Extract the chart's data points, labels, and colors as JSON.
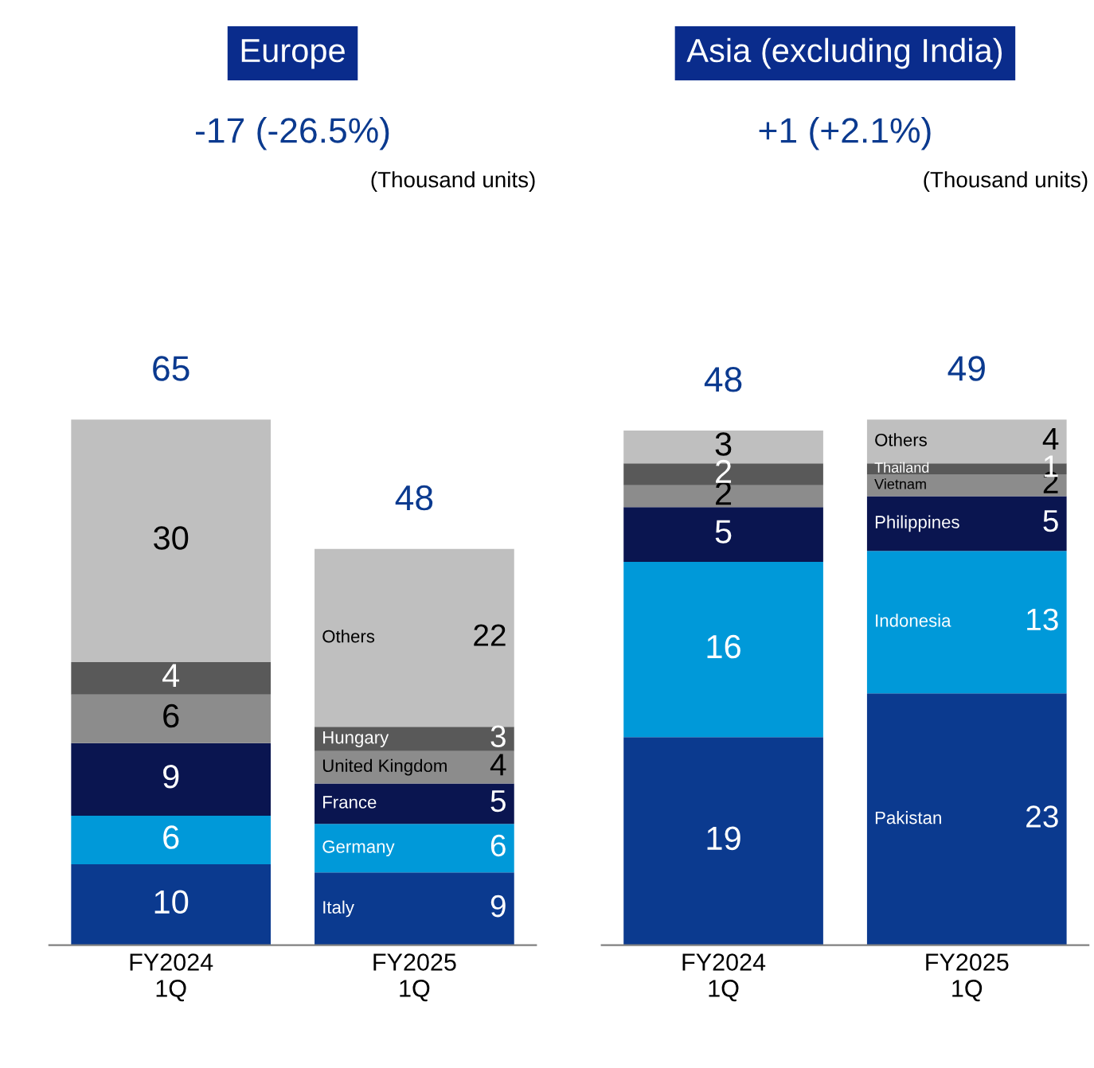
{
  "chart_data": [
    {
      "type": "bar",
      "stacked": true,
      "title": "Europe",
      "subtitle": "-17 (-26.5%)",
      "annotations": [
        "(Thousand units)"
      ],
      "categories": [
        "FY2024\n1Q",
        "FY2025\n1Q"
      ],
      "data_labels": true,
      "legend": false,
      "totals": [
        "65",
        "48"
      ],
      "series": [
        {
          "name": "Italy",
          "color": "#0b3a8f",
          "values": [
            10,
            9
          ]
        },
        {
          "name": "Germany",
          "color": "#0099d9",
          "values": [
            6,
            6
          ]
        },
        {
          "name": "France",
          "color": "#0a1550",
          "values": [
            9,
            5
          ]
        },
        {
          "name": "United Kingdom",
          "color": "#8c8c8c",
          "values": [
            6,
            4
          ]
        },
        {
          "name": "Hungary",
          "color": "#595959",
          "values": [
            4,
            3
          ]
        },
        {
          "name": "Others",
          "color": "#bfbfbf",
          "values": [
            30,
            22
          ]
        }
      ]
    },
    {
      "type": "bar",
      "stacked": true,
      "title": "Asia (excluding India)",
      "subtitle": "+1 (+2.1%)",
      "annotations": [
        "(Thousand units)"
      ],
      "categories": [
        "FY2024\n1Q",
        "FY2025\n1Q"
      ],
      "data_labels": true,
      "legend": false,
      "totals": [
        "48",
        "49"
      ],
      "series": [
        {
          "name": "Pakistan",
          "color": "#0b3a8f",
          "values": [
            19,
            23
          ]
        },
        {
          "name": "Indonesia",
          "color": "#0099d9",
          "values": [
            16,
            13
          ]
        },
        {
          "name": "Philippines",
          "color": "#0a1550",
          "values": [
            5,
            5
          ]
        },
        {
          "name": "Vietnam",
          "color": "#8c8c8c",
          "values": [
            2,
            2
          ]
        },
        {
          "name": "Thailand",
          "color": "#595959",
          "values": [
            2,
            1
          ]
        },
        {
          "name": "Others",
          "color": "#bfbfbf",
          "values": [
            3,
            4
          ]
        }
      ]
    }
  ]
}
